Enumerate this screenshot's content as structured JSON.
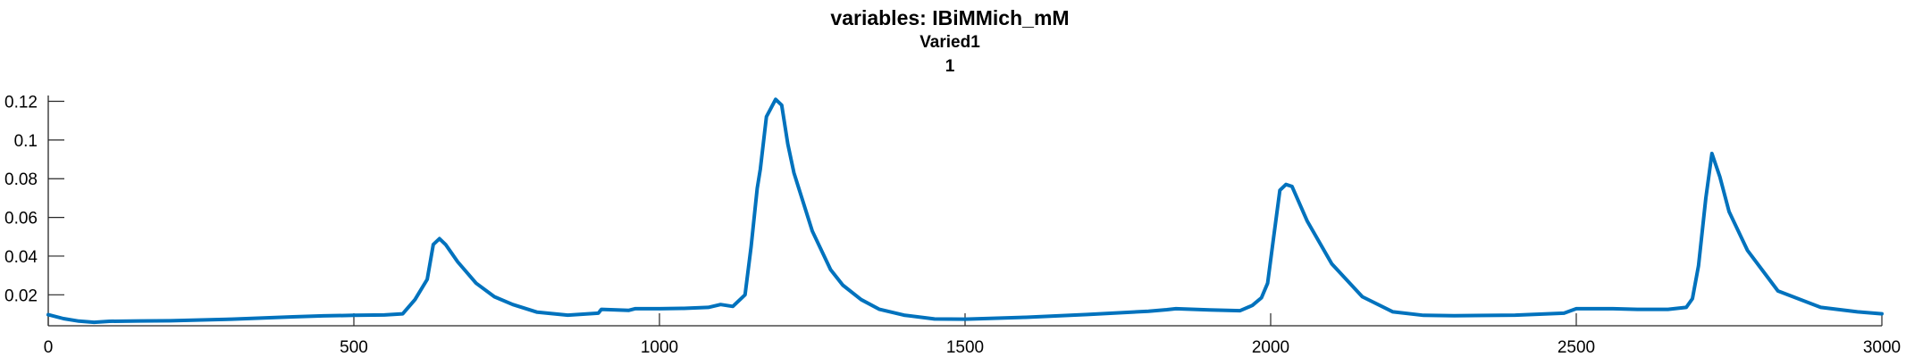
{
  "chart_data": {
    "type": "line",
    "title": "variables: IBiMMich_mM",
    "subtitle_lines": [
      "Varied1",
      "1"
    ],
    "xlabel": "",
    "ylabel": "",
    "xlim": [
      0,
      3000
    ],
    "ylim": [
      0.004,
      0.123
    ],
    "x_ticks": [
      0,
      500,
      1000,
      1500,
      2000,
      2500,
      3000
    ],
    "x_tick_labels": [
      "0",
      "500",
      "1000",
      "1500",
      "2000",
      "2500",
      "3000"
    ],
    "y_ticks": [
      0.02,
      0.04,
      0.06,
      0.08,
      0.1,
      0.12
    ],
    "y_tick_labels": [
      "0.02",
      "0.04",
      "0.06",
      "0.08",
      "0.1",
      "0.12"
    ],
    "grid": false,
    "line_color": "#0072BD",
    "series": [
      {
        "x": [
          0,
          25,
          50,
          75,
          100,
          150,
          200,
          300,
          400,
          450,
          500,
          550,
          580,
          600,
          620,
          630,
          640,
          650,
          670,
          700,
          730,
          760,
          800,
          850,
          900,
          905,
          950,
          960,
          1000,
          1040,
          1080,
          1100,
          1120,
          1140,
          1150,
          1160,
          1165,
          1175,
          1190,
          1200,
          1210,
          1220,
          1250,
          1280,
          1300,
          1330,
          1360,
          1400,
          1450,
          1500,
          1600,
          1700,
          1800,
          1830,
          1845,
          1900,
          1950,
          1970,
          1985,
          1995,
          2005,
          2015,
          2025,
          2035,
          2060,
          2100,
          2150,
          2200,
          2250,
          2300,
          2400,
          2480,
          2500,
          2505,
          2560,
          2600,
          2650,
          2680,
          2690,
          2700,
          2712,
          2722,
          2735,
          2750,
          2780,
          2830,
          2900,
          2960,
          3000
        ],
        "y": [
          0.0097,
          0.0077,
          0.0064,
          0.0058,
          0.0063,
          0.0065,
          0.0066,
          0.0074,
          0.0086,
          0.0091,
          0.0094,
          0.0096,
          0.0102,
          0.0175,
          0.028,
          0.046,
          0.049,
          0.046,
          0.037,
          0.026,
          0.019,
          0.015,
          0.011,
          0.0095,
          0.0105,
          0.0125,
          0.012,
          0.0128,
          0.0128,
          0.013,
          0.0135,
          0.015,
          0.014,
          0.02,
          0.045,
          0.075,
          0.085,
          0.112,
          0.121,
          0.118,
          0.098,
          0.083,
          0.053,
          0.033,
          0.025,
          0.0175,
          0.0125,
          0.0095,
          0.0075,
          0.0074,
          0.0084,
          0.0098,
          0.0115,
          0.0123,
          0.0128,
          0.0122,
          0.0118,
          0.0145,
          0.0185,
          0.026,
          0.05,
          0.074,
          0.077,
          0.076,
          0.058,
          0.036,
          0.019,
          0.0112,
          0.0094,
          0.0092,
          0.0095,
          0.0105,
          0.0128,
          0.0128,
          0.0128,
          0.0125,
          0.0125,
          0.0135,
          0.018,
          0.035,
          0.07,
          0.093,
          0.081,
          0.063,
          0.043,
          0.022,
          0.0135,
          0.0112,
          0.0102
        ]
      }
    ]
  }
}
